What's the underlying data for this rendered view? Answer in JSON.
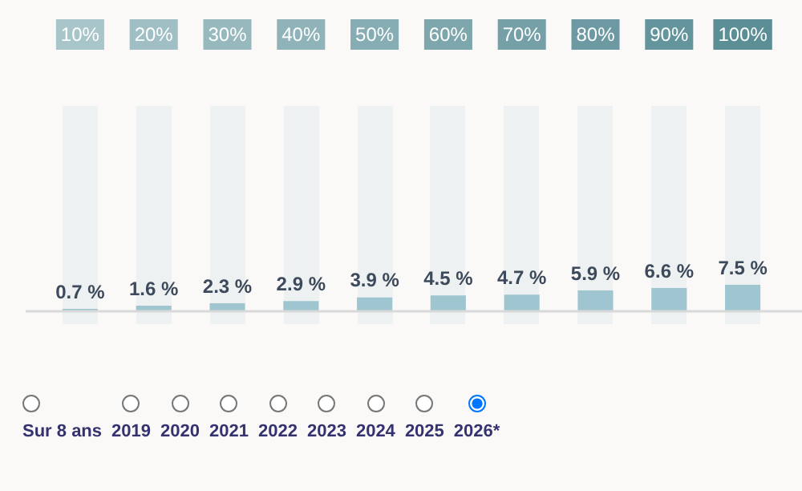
{
  "chart_data": {
    "type": "bar",
    "categories": [
      "10%",
      "20%",
      "30%",
      "40%",
      "50%",
      "60%",
      "70%",
      "80%",
      "90%",
      "100%"
    ],
    "values": [
      0.7,
      1.6,
      2.3,
      2.9,
      3.9,
      4.5,
      4.7,
      5.9,
      6.6,
      7.5
    ],
    "value_labels": [
      "0.7 %",
      "1.6 %",
      "2.3 %",
      "2.9 %",
      "3.9 %",
      "4.5 %",
      "4.7 %",
      "5.9 %",
      "6.6 %",
      "7.5 %"
    ],
    "color": "#9fc6d0",
    "ref_lines": [
      {
        "axis": "y",
        "value": 0,
        "color": "#d9d9d9"
      }
    ],
    "annotations": [
      "Sur 8 ans",
      "2019",
      "2020",
      "2021",
      "2022",
      "2023",
      "2024",
      "2025",
      "2026*"
    ]
  }
}
